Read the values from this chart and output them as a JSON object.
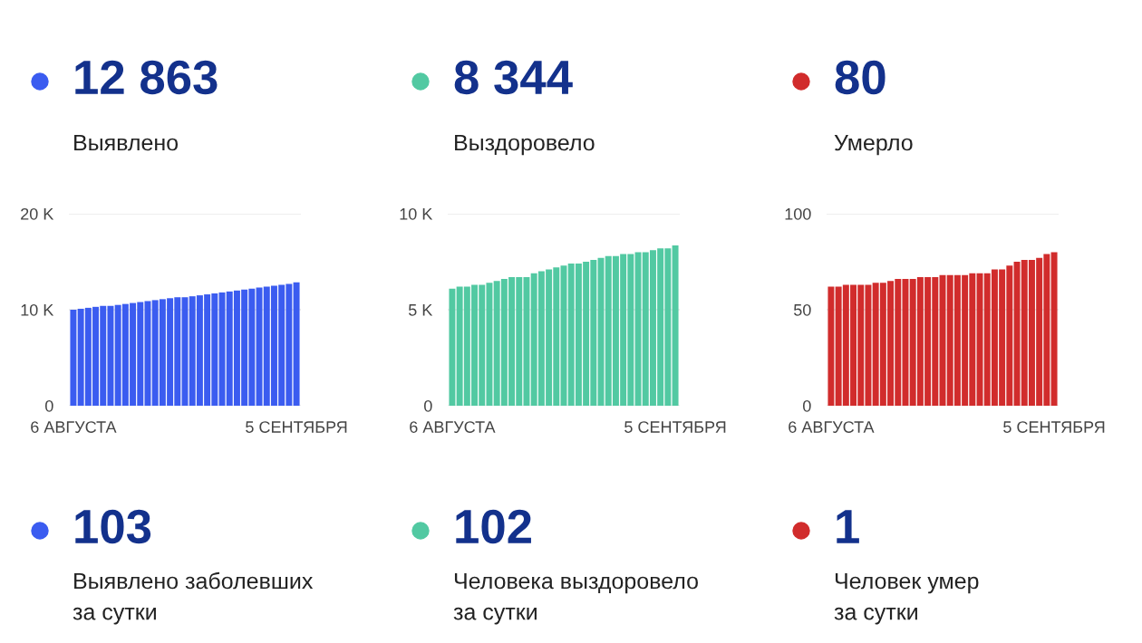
{
  "chart_data": [
    {
      "type": "bar",
      "title": "12 863",
      "subtitle": "Выявлено",
      "color": "#3b5cf0",
      "grid": "y",
      "categories": [
        "6 АВГУСТА",
        null,
        null,
        null,
        null,
        null,
        null,
        null,
        null,
        null,
        null,
        null,
        null,
        null,
        null,
        null,
        null,
        null,
        null,
        null,
        null,
        null,
        null,
        null,
        null,
        null,
        null,
        null,
        null,
        null,
        "5 СЕНТЯБРЯ"
      ],
      "values": [
        10000,
        10100,
        10200,
        10300,
        10400,
        10400,
        10500,
        10600,
        10700,
        10800,
        10900,
        11000,
        11100,
        11200,
        11300,
        11300,
        11400,
        11500,
        11600,
        11700,
        11800,
        11900,
        12000,
        12100,
        12200,
        12300,
        12400,
        12500,
        12600,
        12700,
        12863
      ],
      "ylim": [
        0,
        20000
      ],
      "yticks": [
        {
          "value": 0,
          "label": "0"
        },
        {
          "value": 10000,
          "label": "10 K"
        },
        {
          "value": 20000,
          "label": "20 K"
        }
      ]
    },
    {
      "type": "bar",
      "title": "8 344",
      "subtitle": "Выздоровело",
      "color": "#52c9a2",
      "grid": "y",
      "categories": [
        "6 АВГУСТА",
        null,
        null,
        null,
        null,
        null,
        null,
        null,
        null,
        null,
        null,
        null,
        null,
        null,
        null,
        null,
        null,
        null,
        null,
        null,
        null,
        null,
        null,
        null,
        null,
        null,
        null,
        null,
        null,
        null,
        "5 СЕНТЯБРЯ"
      ],
      "values": [
        6100,
        6200,
        6200,
        6300,
        6300,
        6400,
        6500,
        6600,
        6700,
        6700,
        6700,
        6900,
        7000,
        7100,
        7200,
        7300,
        7400,
        7400,
        7500,
        7600,
        7700,
        7800,
        7800,
        7900,
        7900,
        8000,
        8000,
        8100,
        8200,
        8200,
        8344
      ],
      "ylim": [
        0,
        10000
      ],
      "yticks": [
        {
          "value": 0,
          "label": "0"
        },
        {
          "value": 5000,
          "label": "5 K"
        },
        {
          "value": 10000,
          "label": "10 K"
        }
      ]
    },
    {
      "type": "bar",
      "title": "80",
      "subtitle": "Умерло",
      "color": "#d12c2c",
      "grid": "y",
      "categories": [
        "6 АВГУСТА",
        null,
        null,
        null,
        null,
        null,
        null,
        null,
        null,
        null,
        null,
        null,
        null,
        null,
        null,
        null,
        null,
        null,
        null,
        null,
        null,
        null,
        null,
        null,
        null,
        null,
        null,
        null,
        null,
        null,
        "5 СЕНТЯБРЯ"
      ],
      "values": [
        62,
        62,
        63,
        63,
        63,
        63,
        64,
        64,
        65,
        66,
        66,
        66,
        67,
        67,
        67,
        68,
        68,
        68,
        68,
        69,
        69,
        69,
        71,
        71,
        73,
        75,
        76,
        76,
        77,
        79,
        80
      ],
      "ylim": [
        0,
        100
      ],
      "yticks": [
        0,
        50,
        100
      ]
    },
    {
      "type": "other",
      "title": "103",
      "subtitle": "Выявлено заболевших\nза сутки",
      "color": "#3b5cf0"
    },
    {
      "type": "other",
      "title": "102",
      "subtitle": "Человека выздоровело\nза сутки",
      "color": "#52c9a2"
    },
    {
      "type": "other",
      "title": "1",
      "subtitle": "Человек умер\nза сутки",
      "color": "#d12c2c"
    }
  ]
}
